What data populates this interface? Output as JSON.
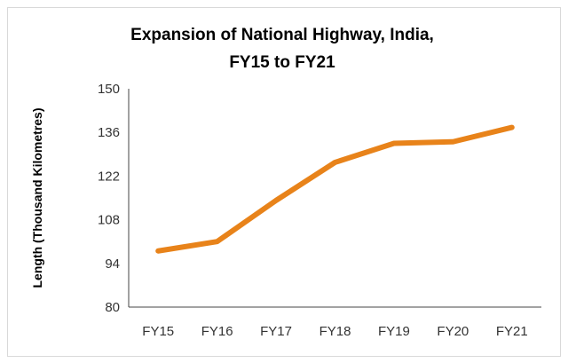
{
  "chart_data": {
    "type": "line",
    "title_lines": [
      "Expansion of National Highway, India,",
      "FY15 to FY21"
    ],
    "xlabel": "",
    "ylabel": "Length (Thousand Kilometres)",
    "categories": [
      "FY15",
      "FY16",
      "FY17",
      "FY18",
      "FY19",
      "FY20",
      "FY21"
    ],
    "values": [
      98.0,
      101.0,
      114.2,
      126.4,
      132.5,
      133.0,
      137.6
    ],
    "ylim": [
      80,
      150
    ],
    "yticks": [
      "80",
      "94",
      "108",
      "122",
      "136",
      "150"
    ],
    "grid": false,
    "legend": "none",
    "line_color": "#E8831A"
  }
}
